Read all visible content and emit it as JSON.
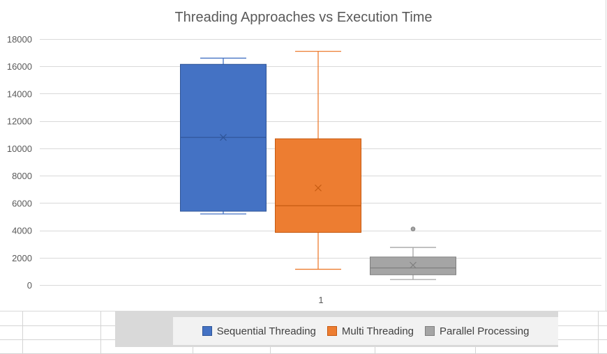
{
  "chart_data": {
    "type": "box",
    "title": "Threading Approaches vs Execution Time",
    "xlabel": "",
    "ylabel": "",
    "categories": [
      "1"
    ],
    "ylim": [
      0,
      18000
    ],
    "yticks": [
      0,
      2000,
      4000,
      6000,
      8000,
      10000,
      12000,
      14000,
      16000,
      18000
    ],
    "grid": true,
    "legend_position": "bottom",
    "series": [
      {
        "name": "Sequential Threading",
        "color": "#4472c4",
        "stroke": "#2f5597",
        "min": 5200,
        "q1": 5400,
        "median": 10800,
        "mean": 10800,
        "q3": 16150,
        "max": 16600,
        "outliers": []
      },
      {
        "name": "Multi Threading",
        "color": "#ed7d31",
        "stroke": "#c55a11",
        "min": 1150,
        "q1": 3850,
        "median": 5800,
        "mean": 7100,
        "q3": 10700,
        "max": 17100,
        "outliers": []
      },
      {
        "name": "Parallel Processing",
        "color": "#a5a5a5",
        "stroke": "#7f7f7f",
        "min": 400,
        "q1": 750,
        "median": 1250,
        "mean": 1450,
        "q3": 2050,
        "max": 2750,
        "outliers": [
          4100
        ]
      }
    ]
  }
}
